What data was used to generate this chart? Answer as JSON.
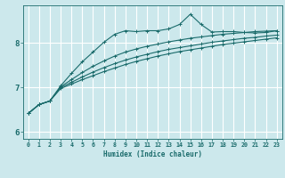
{
  "xlabel": "Humidex (Indice chaleur)",
  "ylabel": "",
  "bg_color": "#cce8ec",
  "grid_color": "#ffffff",
  "line_color": "#1a6b6b",
  "xlim": [
    -0.5,
    23.5
  ],
  "ylim": [
    5.85,
    8.85
  ],
  "yticks": [
    6,
    7,
    8
  ],
  "xticks": [
    0,
    1,
    2,
    3,
    4,
    5,
    6,
    7,
    8,
    9,
    10,
    11,
    12,
    13,
    14,
    15,
    16,
    17,
    18,
    19,
    20,
    21,
    22,
    23
  ],
  "line1_x": [
    0,
    1,
    2,
    3,
    4,
    5,
    6,
    7,
    8,
    9,
    10,
    11,
    12,
    13,
    14,
    15,
    16,
    17,
    18,
    19,
    20,
    21,
    22,
    23
  ],
  "line1_y": [
    6.42,
    6.62,
    6.7,
    6.98,
    7.08,
    7.18,
    7.27,
    7.36,
    7.44,
    7.52,
    7.59,
    7.65,
    7.71,
    7.76,
    7.81,
    7.85,
    7.89,
    7.93,
    7.97,
    8.0,
    8.03,
    8.06,
    8.09,
    8.12
  ],
  "line2_x": [
    0,
    1,
    2,
    3,
    4,
    5,
    6,
    7,
    8,
    9,
    10,
    11,
    12,
    13,
    14,
    15,
    16,
    17,
    18,
    19,
    20,
    21,
    22,
    23
  ],
  "line2_y": [
    6.42,
    6.62,
    6.7,
    7.0,
    7.12,
    7.24,
    7.35,
    7.45,
    7.54,
    7.62,
    7.69,
    7.75,
    7.81,
    7.86,
    7.9,
    7.94,
    7.98,
    8.02,
    8.05,
    8.08,
    8.11,
    8.13,
    8.16,
    8.18
  ],
  "line3_x": [
    0,
    1,
    2,
    3,
    4,
    5,
    6,
    7,
    8,
    9,
    10,
    11,
    12,
    13,
    14,
    15,
    16,
    17,
    18,
    19,
    20,
    21,
    22,
    23
  ],
  "line3_y": [
    6.42,
    6.62,
    6.7,
    7.02,
    7.18,
    7.34,
    7.48,
    7.6,
    7.71,
    7.8,
    7.87,
    7.93,
    7.98,
    8.03,
    8.07,
    8.11,
    8.14,
    8.17,
    8.2,
    8.22,
    8.24,
    8.26,
    8.27,
    8.28
  ],
  "line4_x": [
    0,
    1,
    2,
    3,
    4,
    5,
    6,
    7,
    8,
    9,
    10,
    11,
    12,
    13,
    14,
    15,
    16,
    17,
    18,
    19,
    20,
    21,
    22,
    23
  ],
  "line4_y": [
    6.42,
    6.62,
    6.7,
    7.04,
    7.32,
    7.58,
    7.8,
    8.02,
    8.2,
    8.28,
    8.26,
    8.28,
    8.28,
    8.32,
    8.42,
    8.65,
    8.42,
    8.25,
    8.26,
    8.26,
    8.24,
    8.23,
    8.24,
    8.28
  ]
}
